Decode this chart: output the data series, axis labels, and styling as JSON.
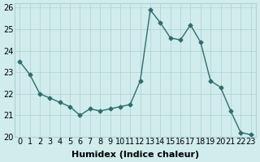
{
  "x": [
    0,
    1,
    2,
    3,
    4,
    5,
    6,
    7,
    8,
    9,
    10,
    11,
    12,
    13,
    14,
    15,
    16,
    17,
    18,
    19,
    20,
    21,
    22,
    23
  ],
  "y": [
    23.5,
    22.9,
    22.0,
    21.8,
    21.6,
    21.4,
    21.0,
    21.3,
    21.2,
    21.3,
    21.4,
    21.5,
    22.6,
    25.9,
    25.3,
    24.6,
    24.5,
    25.2,
    24.4,
    22.6,
    22.3,
    21.2,
    20.2,
    20.1
  ],
  "xlabel": "Humidex (Indice chaleur)",
  "ylabel": "",
  "xlim": [
    -0.5,
    23.5
  ],
  "ylim": [
    20.0,
    26.2
  ],
  "yticks": [
    20,
    21,
    22,
    23,
    24,
    25,
    26
  ],
  "xticks": [
    0,
    1,
    2,
    3,
    4,
    5,
    6,
    7,
    8,
    9,
    10,
    11,
    12,
    13,
    14,
    15,
    16,
    17,
    18,
    19,
    20,
    21,
    22,
    23
  ],
  "line_color": "#2d6e6e",
  "marker": "D",
  "marker_size": 2.5,
  "bg_color": "#d0ecec",
  "grid_color": "#b0d0d0",
  "axis_bg": "#d0ecec",
  "tick_label_fontsize": 7,
  "xlabel_fontsize": 8
}
